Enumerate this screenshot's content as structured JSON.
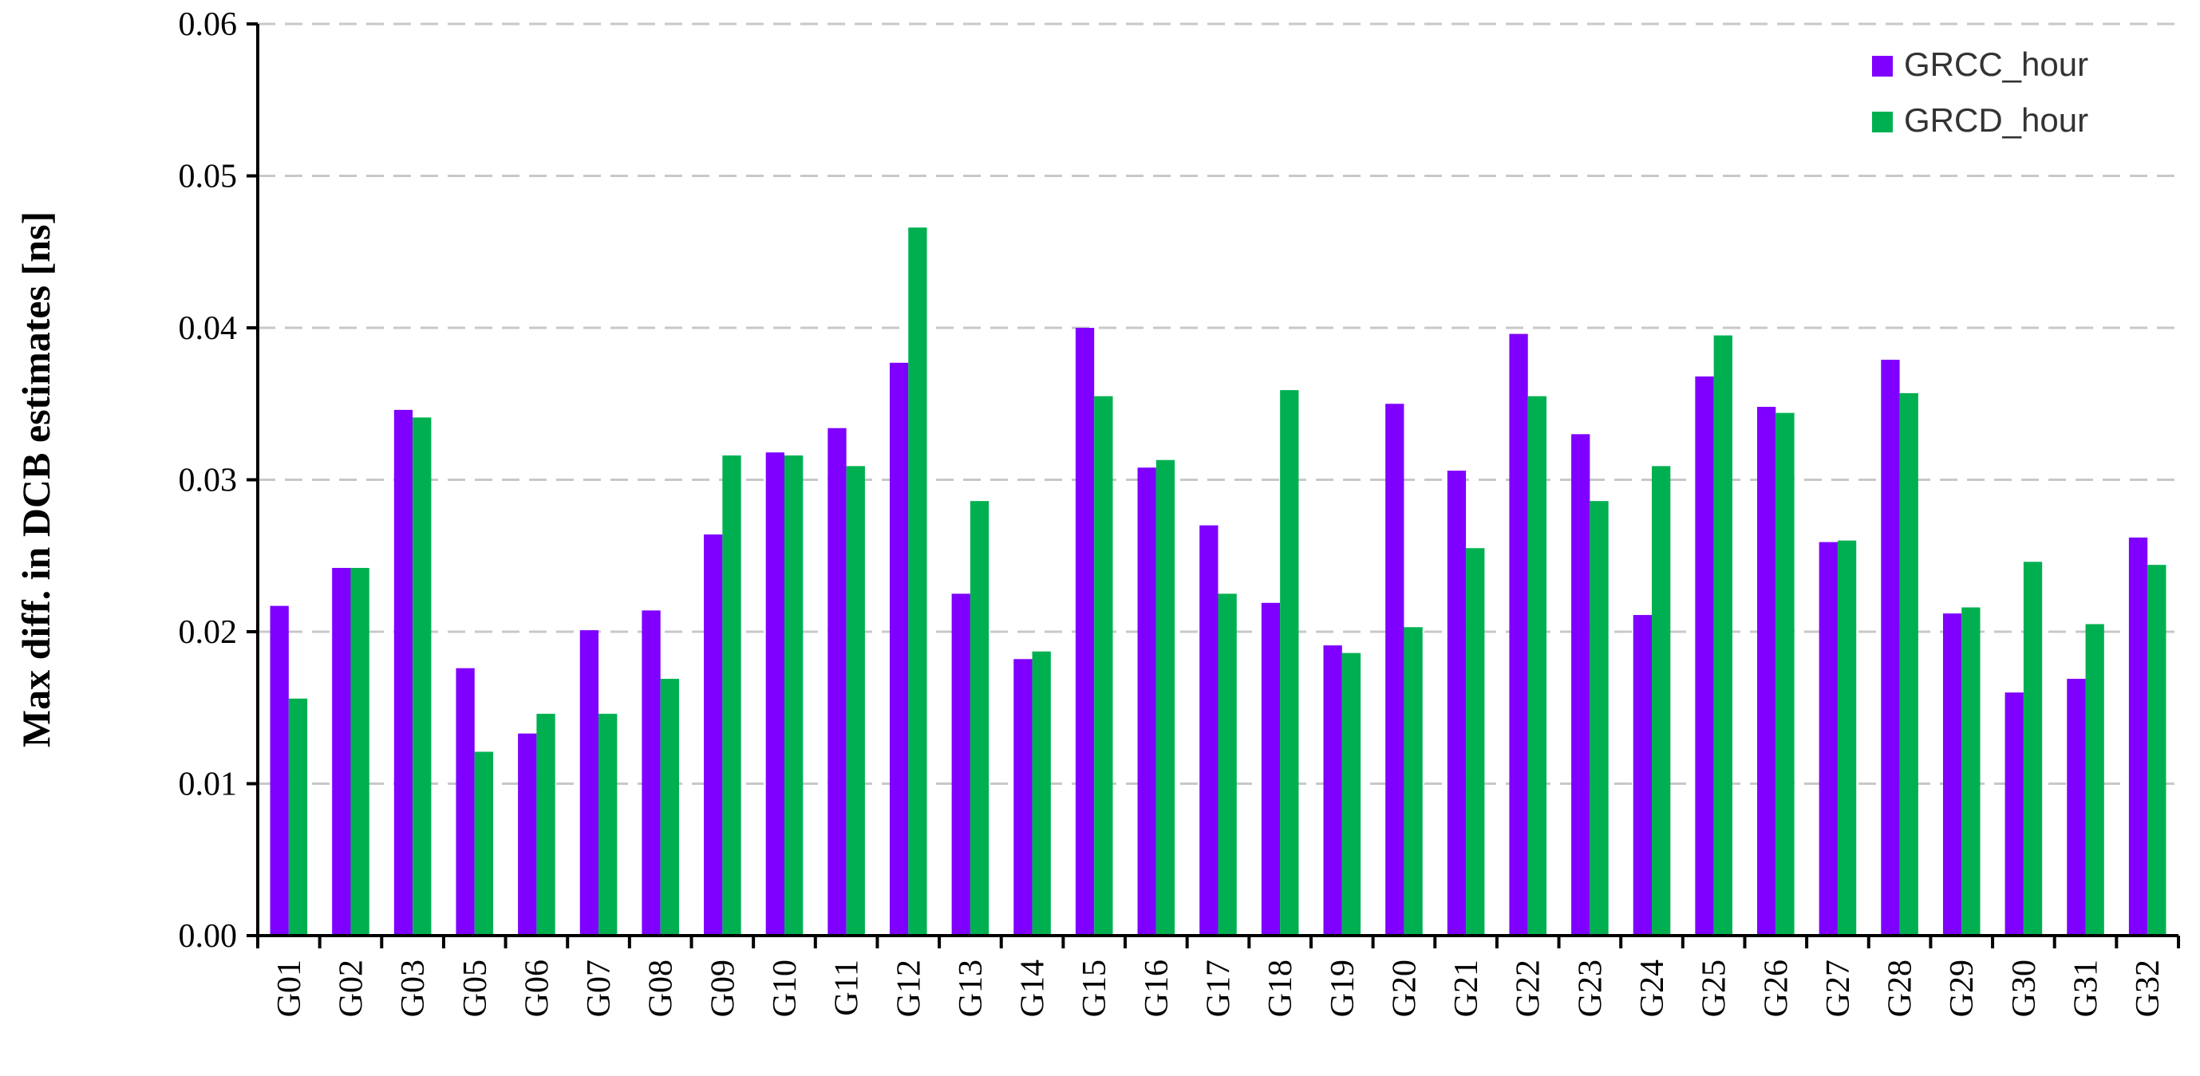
{
  "chart_data": {
    "type": "bar",
    "title": "",
    "xlabel": "",
    "ylabel": "Max diff. in DCB estimates [ns]",
    "ylim": [
      0,
      0.06
    ],
    "yticks": [
      "0.00",
      "0.01",
      "0.02",
      "0.03",
      "0.04",
      "0.05",
      "0.06"
    ],
    "categories": [
      "G01",
      "G02",
      "G03",
      "G05",
      "G06",
      "G07",
      "G08",
      "G09",
      "G10",
      "G11",
      "G12",
      "G13",
      "G14",
      "G15",
      "G16",
      "G17",
      "G18",
      "G19",
      "G20",
      "G21",
      "G22",
      "G23",
      "G24",
      "G25",
      "G26",
      "G27",
      "G28",
      "G29",
      "G30",
      "G31",
      "G32"
    ],
    "series": [
      {
        "name": "GRCC_hour",
        "color": "#7F00FF",
        "values": [
          0.0217,
          0.0242,
          0.0346,
          0.0176,
          0.0133,
          0.0201,
          0.0214,
          0.0264,
          0.0318,
          0.0334,
          0.0377,
          0.0225,
          0.0182,
          0.04,
          0.0308,
          0.027,
          0.0219,
          0.0191,
          0.035,
          0.0306,
          0.0396,
          0.033,
          0.0211,
          0.0368,
          0.0348,
          0.0259,
          0.0379,
          0.0212,
          0.016,
          0.0169,
          0.0262
        ]
      },
      {
        "name": "GRCD_hour",
        "color": "#00B050",
        "values": [
          0.0156,
          0.0242,
          0.0341,
          0.0121,
          0.0146,
          0.0146,
          0.0169,
          0.0316,
          0.0316,
          0.0309,
          0.0466,
          0.0286,
          0.0187,
          0.0355,
          0.0313,
          0.0225,
          0.0359,
          0.0186,
          0.0203,
          0.0255,
          0.0355,
          0.0286,
          0.0309,
          0.0395,
          0.0344,
          0.026,
          0.0357,
          0.0216,
          0.0246,
          0.0205,
          0.0244
        ]
      }
    ],
    "grid": "horizontal-dashed",
    "legend_position": "top-right"
  }
}
